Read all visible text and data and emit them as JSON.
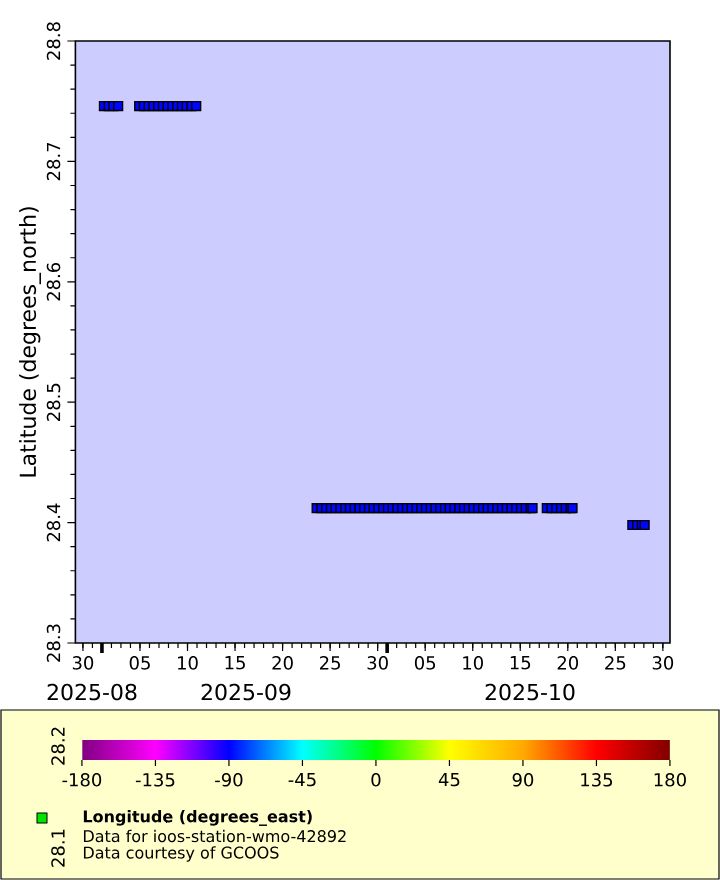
{
  "chart_data": {
    "type": "scatter",
    "xlabel": null,
    "ylabel": "Latitude (degrees_north)",
    "clabel": "Longitude (degrees_east)",
    "annotations": [
      "2025-08",
      "2025-09",
      "2025-10",
      "Data for ioos-station-wmo-42892",
      "Data courtesy of GCOOS",
      "28.2",
      "28.1"
    ],
    "x": [
      "2025-09-01T05:00",
      "2025-09-01T17:00",
      "2025-09-02T05:00",
      "2025-09-02T17:00",
      "2025-09-04T22:00",
      "2025-09-05T10:00",
      "2025-09-05T22:00",
      "2025-09-06T10:00",
      "2025-09-06T22:00",
      "2025-09-07T10:00",
      "2025-09-07T22:00",
      "2025-09-08T10:00",
      "2025-09-08T22:00",
      "2025-09-09T10:00",
      "2025-09-09T22:00",
      "2025-09-10T10:00",
      "2025-09-10T22:00",
      "2025-09-23T14:00",
      "2025-09-24T02:00",
      "2025-09-24T14:00",
      "2025-09-25T02:00",
      "2025-09-25T14:00",
      "2025-09-26T02:00",
      "2025-09-26T14:00",
      "2025-09-27T02:00",
      "2025-09-27T14:00",
      "2025-09-28T02:00",
      "2025-09-28T14:00",
      "2025-09-29T02:00",
      "2025-09-29T14:00",
      "2025-09-30T02:00",
      "2025-09-30T14:00",
      "2025-10-01T02:00",
      "2025-10-01T14:00",
      "2025-10-02T02:00",
      "2025-10-02T14:00",
      "2025-10-03T02:00",
      "2025-10-03T14:00",
      "2025-10-04T02:00",
      "2025-10-04T14:00",
      "2025-10-05T02:00",
      "2025-10-05T14:00",
      "2025-10-06T02:00",
      "2025-10-06T14:00",
      "2025-10-07T02:00",
      "2025-10-07T14:00",
      "2025-10-08T02:00",
      "2025-10-08T14:00",
      "2025-10-09T02:00",
      "2025-10-09T14:00",
      "2025-10-10T02:00",
      "2025-10-10T14:00",
      "2025-10-11T02:00",
      "2025-10-11T14:00",
      "2025-10-12T02:00",
      "2025-10-12T14:00",
      "2025-10-13T02:00",
      "2025-10-13T14:00",
      "2025-10-14T02:00",
      "2025-10-14T14:00",
      "2025-10-15T02:00",
      "2025-10-15T14:00",
      "2025-10-16T02:00",
      "2025-10-16T07:00",
      "2025-10-17T19:00",
      "2025-10-18T07:00",
      "2025-10-18T19:00",
      "2025-10-19T07:00",
      "2025-10-19T19:00",
      "2025-10-20T07:00",
      "2025-10-20T12:00",
      "2025-10-26T19:00",
      "2025-10-27T07:00",
      "2025-10-27T19:00",
      "2025-10-28T02:00"
    ],
    "values": [
      28.746,
      28.746,
      28.746,
      28.746,
      28.746,
      28.746,
      28.746,
      28.746,
      28.746,
      28.746,
      28.746,
      28.746,
      28.746,
      28.746,
      28.746,
      28.746,
      28.746,
      28.412,
      28.412,
      28.412,
      28.412,
      28.412,
      28.412,
      28.412,
      28.412,
      28.412,
      28.412,
      28.412,
      28.412,
      28.412,
      28.412,
      28.412,
      28.412,
      28.412,
      28.412,
      28.412,
      28.412,
      28.412,
      28.412,
      28.412,
      28.412,
      28.412,
      28.412,
      28.412,
      28.412,
      28.412,
      28.412,
      28.412,
      28.412,
      28.412,
      28.412,
      28.412,
      28.412,
      28.412,
      28.412,
      28.412,
      28.412,
      28.412,
      28.412,
      28.412,
      28.412,
      28.412,
      28.412,
      28.412,
      28.412,
      28.412,
      28.412,
      28.412,
      28.412,
      28.412,
      28.412,
      28.398,
      28.398,
      28.398,
      28.398
    ],
    "cvalues": [
      -89,
      -89,
      -89,
      -89,
      -89,
      -89,
      -89,
      -89,
      -89,
      -89,
      -89,
      -89,
      -89,
      -89,
      -89,
      -89,
      -89,
      -89,
      -89,
      -89,
      -89,
      -89,
      -89,
      -89,
      -89,
      -89,
      -89,
      -89,
      -89,
      -89,
      -89,
      -89,
      -89,
      -89,
      -89,
      -89,
      -89,
      -89,
      -89,
      -89,
      -89,
      -89,
      -89,
      -89,
      -89,
      -89,
      -89,
      -89,
      -89,
      -89,
      -89,
      -89,
      -89,
      -89,
      -89,
      -89,
      -89,
      -89,
      -89,
      -89,
      -89,
      -89,
      -89,
      -89,
      -89,
      -89,
      -89,
      -89,
      -89,
      -89,
      -89,
      -89,
      -89,
      -89,
      -89
    ],
    "marker": "square",
    "xlim": [
      "2025-08-29T05:00",
      "2025-10-30T18:00"
    ],
    "xticks": [
      {
        "value": "2025-08-30",
        "label": "30"
      },
      {
        "value": "2025-09-05",
        "label": "05"
      },
      {
        "value": "2025-09-10",
        "label": "10"
      },
      {
        "value": "2025-09-15",
        "label": "15"
      },
      {
        "value": "2025-09-20",
        "label": "20"
      },
      {
        "value": "2025-09-25",
        "label": "25"
      },
      {
        "value": "2025-09-30",
        "label": "30"
      },
      {
        "value": "2025-10-05",
        "label": "05"
      },
      {
        "value": "2025-10-10",
        "label": "10"
      },
      {
        "value": "2025-10-15",
        "label": "15"
      },
      {
        "value": "2025-10-20",
        "label": "20"
      },
      {
        "value": "2025-10-25",
        "label": "25"
      },
      {
        "value": "2025-10-30",
        "label": "30"
      }
    ],
    "ylim": [
      28.3,
      28.8
    ],
    "yticks": [
      28.3,
      28.4,
      28.5,
      28.6,
      28.7,
      28.8
    ],
    "clim": [
      -180,
      180
    ],
    "cticks": [
      -180,
      -135,
      -90,
      -45,
      0,
      45,
      90,
      135,
      180
    ]
  }
}
